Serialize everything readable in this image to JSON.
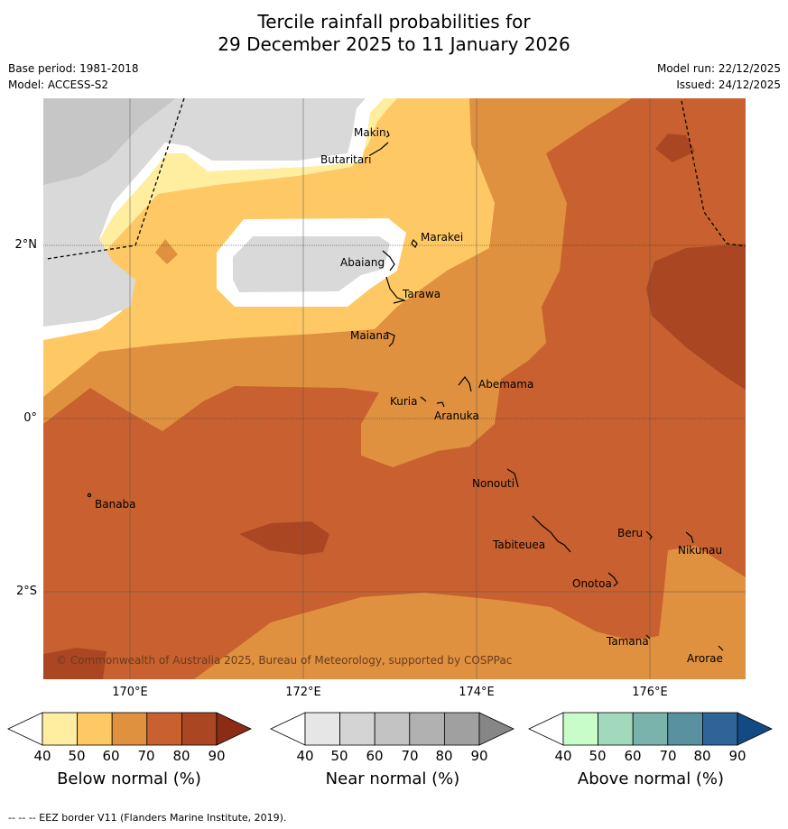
{
  "title": {
    "line1": "Tercile rainfall probabilities for",
    "line2": "29 December 2025 to 11 January 2026"
  },
  "meta": {
    "base_period": "Base period: 1981-2018",
    "model": "Model: ACCESS-S2",
    "model_run": "Model run: 22/12/2025",
    "issued": "Issued: 24/12/2025"
  },
  "axes": {
    "lon_ticks": [
      "170°E",
      "172°E",
      "174°E",
      "176°E"
    ],
    "lat_ticks": [
      "2°N",
      "0°",
      "2°S"
    ]
  },
  "places": [
    "Makin",
    "Butaritari",
    "Marakei",
    "Abaiang",
    "Tarawa",
    "Maiana",
    "Abemama",
    "Kuria",
    "Aranuka",
    "Nonouti",
    "Banaba",
    "Beru",
    "Tabiteuea",
    "Nikunau",
    "Onotoa",
    "Tamana",
    "Arorae"
  ],
  "copyright": "© Commonwealth of Australia 2025, Bureau of Meteorology, supported by COSPPac",
  "colorbars": [
    {
      "title": "Below normal (%)",
      "labels": [
        "40",
        "50",
        "60",
        "70",
        "80",
        "90"
      ],
      "colors": [
        "#ffeda0",
        "#fec965",
        "#e0913f",
        "#c8612f",
        "#ab4623",
        "#8a2c16"
      ]
    },
    {
      "title": "Near normal (%)",
      "labels": [
        "40",
        "50",
        "60",
        "70",
        "80",
        "90"
      ],
      "colors": [
        "#e6e6e6",
        "#d4d4d4",
        "#c3c3c3",
        "#b1b1b1",
        "#a0a0a0",
        "#868686"
      ]
    },
    {
      "title": "Above normal (%)",
      "labels": [
        "40",
        "50",
        "60",
        "70",
        "80",
        "90"
      ],
      "colors": [
        "#c8fcc8",
        "#a2d8bb",
        "#7ab3ac",
        "#5a91a0",
        "#2f6498",
        "#134a84"
      ]
    }
  ],
  "legend_footer": "--  --  -- EEZ border V11 (Flanders Marine Institute, 2019)."
}
